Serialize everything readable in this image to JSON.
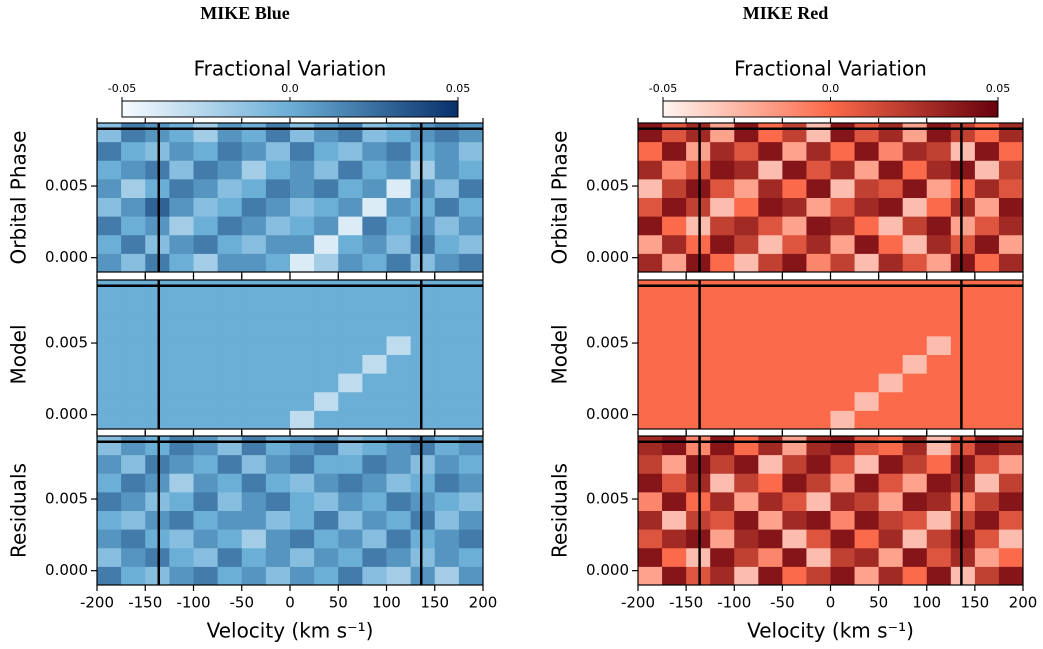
{
  "chart_data": [
    {
      "type": "heatmap",
      "title": "MIKE Blue",
      "colorbar": {
        "label": "Fractional Variation",
        "lim": [
          -0.05,
          0.05
        ],
        "ticks": [
          -0.05,
          {
            "value": 0,
            "label": "0.0"
          },
          0.05
        ],
        "colors": [
          "#f7fbff",
          "#6baed6",
          "#08306b"
        ]
      },
      "xlabel": "Velocity (km s⁻¹)",
      "xlim": [
        -200,
        200
      ],
      "xticks": [
        -200,
        -150,
        -100,
        -50,
        0,
        50,
        100,
        150,
        200
      ],
      "ylim": [
        -0.001,
        0.0094
      ],
      "yticks": [
        {
          "value": 0,
          "label": "0.000"
        },
        {
          "value": 0.005,
          "label": "0.005"
        }
      ],
      "vlines": [
        -136,
        136
      ],
      "hline": 0.009,
      "panels": [
        {
          "ylabel": "Orbital Phase",
          "z": [
            [
              0.01,
              -0.01,
              0.02,
              0,
              -0.02,
              0.01,
              0.01,
              0,
              -0.04,
              -0.02,
              0.01,
              0,
              0.02,
              -0.01,
              0.01,
              0.02
            ],
            [
              0,
              0.02,
              -0.01,
              0.01,
              0.02,
              0,
              -0.01,
              0.01,
              0.01,
              -0.04,
              0,
              0.01,
              -0.01,
              0.02,
              0,
              -0.01
            ],
            [
              0.02,
              0,
              0.01,
              -0.02,
              0,
              0.02,
              0.01,
              -0.01,
              0,
              0.01,
              -0.04,
              0.02,
              0,
              0.01,
              -0.01,
              0.01
            ],
            [
              -0.01,
              0.01,
              0.03,
              0.01,
              -0.01,
              0,
              0.02,
              0.01,
              -0.01,
              0,
              0.01,
              -0.04,
              0.01,
              0,
              0.02,
              0
            ],
            [
              0.01,
              -0.02,
              0,
              0.02,
              0.01,
              -0.01,
              0,
              0.02,
              0.01,
              0.02,
              0,
              0.01,
              -0.04,
              0.01,
              -0.01,
              0.02
            ],
            [
              0,
              0.01,
              0.02,
              -0.01,
              0.02,
              0.01,
              -0.02,
              0,
              0.01,
              -0.01,
              0.02,
              0,
              0.01,
              -0.02,
              0.01,
              0
            ],
            [
              0.02,
              0,
              -0.01,
              0.01,
              0,
              0.02,
              0.01,
              -0.01,
              0.02,
              0,
              -0.01,
              0.01,
              0.02,
              0,
              0.01,
              -0.01
            ],
            [
              -0.01,
              0.02,
              0.01,
              0,
              -0.02,
              0.01,
              0,
              0.02,
              -0.01,
              0.01,
              0.02,
              -0.01,
              0,
              0.01,
              0.02,
              0.01
            ]
          ]
        },
        {
          "ylabel": "Model",
          "z": [
            [
              0,
              0,
              0,
              0,
              0,
              0,
              0,
              0,
              -0.03,
              0,
              0,
              0,
              0,
              0,
              0,
              0
            ],
            [
              0,
              0,
              0,
              0,
              0,
              0,
              0,
              0,
              0,
              -0.03,
              0,
              0,
              0,
              0,
              0,
              0
            ],
            [
              0,
              0,
              0,
              0,
              0,
              0,
              0,
              0,
              0,
              0,
              -0.03,
              0,
              0,
              0,
              0,
              0
            ],
            [
              0,
              0,
              0,
              0,
              0,
              0,
              0,
              0,
              0,
              0,
              0,
              -0.03,
              0,
              0,
              0,
              0
            ],
            [
              0,
              0,
              0,
              0,
              0,
              0,
              0,
              0,
              0,
              0,
              0,
              0,
              -0.03,
              0,
              0,
              0
            ],
            [
              0,
              0,
              0,
              0,
              0,
              0,
              0,
              0,
              0,
              0,
              0,
              0,
              0,
              0,
              0,
              0
            ],
            [
              0,
              0,
              0,
              0,
              0,
              0,
              0,
              0,
              0,
              0,
              0,
              0,
              0,
              0,
              0,
              0
            ],
            [
              0,
              0,
              0,
              0,
              0,
              0,
              0,
              0,
              0,
              0,
              0,
              0,
              0,
              0,
              0,
              0
            ]
          ]
        },
        {
          "ylabel": "Residuals",
          "z": [
            [
              0.02,
              0,
              -0.01,
              0.01,
              0.02,
              0,
              0.01,
              -0.01,
              0.01,
              0,
              0.02,
              -0.01,
              -0.02,
              0.01,
              -0.02,
              0.01
            ],
            [
              -0.01,
              0.01,
              0.02,
              0,
              -0.01,
              0.02,
              0,
              0.01,
              -0.01,
              0.01,
              0,
              0.02,
              0.01,
              -0.01,
              0.01,
              0
            ],
            [
              0.01,
              0.02,
              0,
              -0.01,
              0.01,
              0,
              -0.02,
              0.01,
              0.02,
              0,
              0.01,
              -0.01,
              0.02,
              0,
              0.01,
              0.02
            ],
            [
              0,
              -0.01,
              0.01,
              0.02,
              0,
              0.01,
              0.01,
              -0.01,
              0,
              0.02,
              -0.01,
              0.01,
              0,
              0.02,
              -0.01,
              0.01
            ],
            [
              0.02,
              0.01,
              -0.01,
              0,
              0.02,
              -0.01,
              0.01,
              0.02,
              0,
              -0.01,
              0.01,
              0,
              0.02,
              0.01,
              0,
              -0.01
            ],
            [
              0,
              0.02,
              0.01,
              -0.02,
              0.01,
              0,
              0.02,
              0,
              -0.01,
              0.01,
              0.02,
              0.01,
              -0.01,
              0,
              0.02,
              0.01
            ],
            [
              0.01,
              -0.01,
              0.02,
              0.01,
              0,
              0.02,
              -0.01,
              0.01,
              0.02,
              0,
              0,
              0.02,
              0.01,
              -0.01,
              0.01,
              0
            ],
            [
              -0.01,
              0.01,
              0,
              0.02,
              0.01,
              -0.01,
              0.02,
              0,
              0.01,
              0.02,
              -0.01,
              0,
              0.01,
              0.02,
              0,
              0.01
            ]
          ]
        }
      ]
    },
    {
      "type": "heatmap",
      "title": "MIKE Red",
      "colorbar": {
        "label": "Fractional Variation",
        "lim": [
          -0.05,
          0.05
        ],
        "ticks": [
          -0.05,
          {
            "value": 0,
            "label": "0.0"
          },
          0.05
        ],
        "colors": [
          "#fff5f0",
          "#fb6a4a",
          "#67000d"
        ]
      },
      "xlabel": "Velocity (km s⁻¹)",
      "xlim": [
        -200,
        200
      ],
      "xticks": [
        -200,
        -150,
        -100,
        -50,
        0,
        50,
        100,
        150,
        200
      ],
      "ylim": [
        -0.001,
        0.0094
      ],
      "yticks": [
        {
          "value": 0,
          "label": "0.000"
        },
        {
          "value": 0.005,
          "label": "0.005"
        }
      ],
      "vlines": [
        -136,
        136
      ],
      "hline": 0.009,
      "panels": [
        {
          "ylabel": "Orbital Phase",
          "z": [
            [
              0.03,
              -0.02,
              0.04,
              0,
              -0.03,
              0.02,
              0.04,
              -0.01,
              0.02,
              -0.03,
              0.03,
              0.01,
              -0.02,
              0.04,
              0,
              0.03
            ],
            [
              -0.02,
              0.03,
              0,
              0.04,
              0.02,
              -0.03,
              0.01,
              0.03,
              -0.02,
              0.04,
              0,
              -0.03,
              0.03,
              0.01,
              0.04,
              -0.02
            ],
            [
              0.04,
              0,
              -0.03,
              0.02,
              0.03,
              0.01,
              -0.02,
              0.04,
              0.03,
              0,
              -0.03,
              0.02,
              0.04,
              -0.02,
              0.01,
              0.03
            ],
            [
              0.01,
              0.04,
              0.02,
              -0.03,
              0,
              0.04,
              0.03,
              -0.02,
              0.01,
              0.03,
              0.04,
              -0.03,
              0,
              0.03,
              -0.02,
              0.04
            ],
            [
              -0.03,
              0.02,
              0.04,
              0.01,
              -0.02,
              0.03,
              0,
              0.04,
              -0.03,
              0.02,
              0.01,
              0.04,
              -0.02,
              0,
              0.03,
              0.01
            ],
            [
              0.03,
              -0.01,
              0.01,
              0.04,
              0.03,
              -0.03,
              0.04,
              0.01,
              0.03,
              -0.02,
              0.04,
              0,
              0.03,
              0.04,
              -0.03,
              0.02
            ],
            [
              0,
              0.04,
              -0.02,
              0.03,
              0.01,
              0.04,
              -0.02,
              0.03,
              0,
              0.04,
              -0.01,
              0.03,
              0.02,
              -0.03,
              0.04,
              0
            ],
            [
              0.04,
              0.01,
              0.03,
              -0.02,
              0.04,
              0,
              0.02,
              -0.03,
              0.04,
              0.01,
              0.03,
              -0.02,
              0.04,
              0.02,
              0,
              0.03
            ]
          ]
        },
        {
          "ylabel": "Model",
          "z": [
            [
              0,
              0,
              0,
              0,
              0,
              0,
              0,
              0,
              -0.03,
              0,
              0,
              0,
              0,
              0,
              0,
              0
            ],
            [
              0,
              0,
              0,
              0,
              0,
              0,
              0,
              0,
              0,
              -0.03,
              0,
              0,
              0,
              0,
              0,
              0
            ],
            [
              0,
              0,
              0,
              0,
              0,
              0,
              0,
              0,
              0,
              0,
              -0.03,
              0,
              0,
              0,
              0,
              0
            ],
            [
              0,
              0,
              0,
              0,
              0,
              0,
              0,
              0,
              0,
              0,
              0,
              -0.03,
              0,
              0,
              0,
              0
            ],
            [
              0,
              0,
              0,
              0,
              0,
              0,
              0,
              0,
              0,
              0,
              0,
              0,
              -0.03,
              0,
              0,
              0
            ],
            [
              0,
              0,
              0,
              0,
              0,
              0,
              0,
              0,
              0,
              0,
              0,
              0,
              0,
              0,
              0,
              0
            ],
            [
              0,
              0,
              0,
              0,
              0,
              0,
              0,
              0,
              0,
              0,
              0,
              0,
              0,
              0,
              0,
              0
            ],
            [
              0,
              0,
              0,
              0,
              0,
              0,
              0,
              0,
              0,
              0,
              0,
              0,
              0,
              0,
              0,
              0
            ]
          ]
        },
        {
          "ylabel": "Residuals",
          "z": [
            [
              -0.02,
              0.04,
              0.01,
              0.03,
              -0.03,
              0.04,
              0,
              0.02,
              0.04,
              -0.02,
              0.03,
              0,
              0.04,
              -0.03,
              0.02,
              0.04
            ],
            [
              0.04,
              0,
              -0.03,
              0.04,
              0.02,
              -0.01,
              0.04,
              -0.03,
              0.02,
              0.03,
              -0.02,
              0.04,
              0.01,
              0.03,
              -0.02,
              0
            ],
            [
              0.01,
              0.03,
              0.04,
              -0.02,
              0.03,
              0.04,
              -0.03,
              0.01,
              0.04,
              0,
              0.03,
              -0.03,
              0.02,
              0.04,
              0.01,
              -0.03
            ],
            [
              0.03,
              -0.03,
              0.02,
              0.01,
              0.04,
              -0.02,
              0.03,
              0.04,
              -0.01,
              0.04,
              0.02,
              0.01,
              -0.03,
              0.02,
              0.04,
              0.01
            ],
            [
              -0.01,
              0.04,
              0,
              0.03,
              -0.02,
              0.03,
              0.01,
              -0.03,
              0.03,
              0.02,
              -0.02,
              0.04,
              0.03,
              -0.01,
              0.02,
              0.04
            ],
            [
              0.04,
              0.01,
              0.03,
              -0.03,
              0.02,
              0,
              0.04,
              0.02,
              -0.02,
              0.04,
              0.01,
              -0.02,
              0.04,
              0.03,
              -0.03,
              0.02
            ],
            [
              0.02,
              -0.02,
              0.04,
              0.02,
              0.04,
              -0.03,
              0.02,
              0.04,
              0.01,
              -0.03,
              0.04,
              0.02,
              0,
              0.04,
              0.01,
              -0.02
            ],
            [
              0.03,
              0.04,
              -0.01,
              0.04,
              0,
              0.03,
              -0.02,
              0.03,
              0.04,
              0.01,
              0,
              0.03,
              -0.03,
              0.01,
              0.04,
              0.03
            ]
          ]
        }
      ]
    }
  ]
}
